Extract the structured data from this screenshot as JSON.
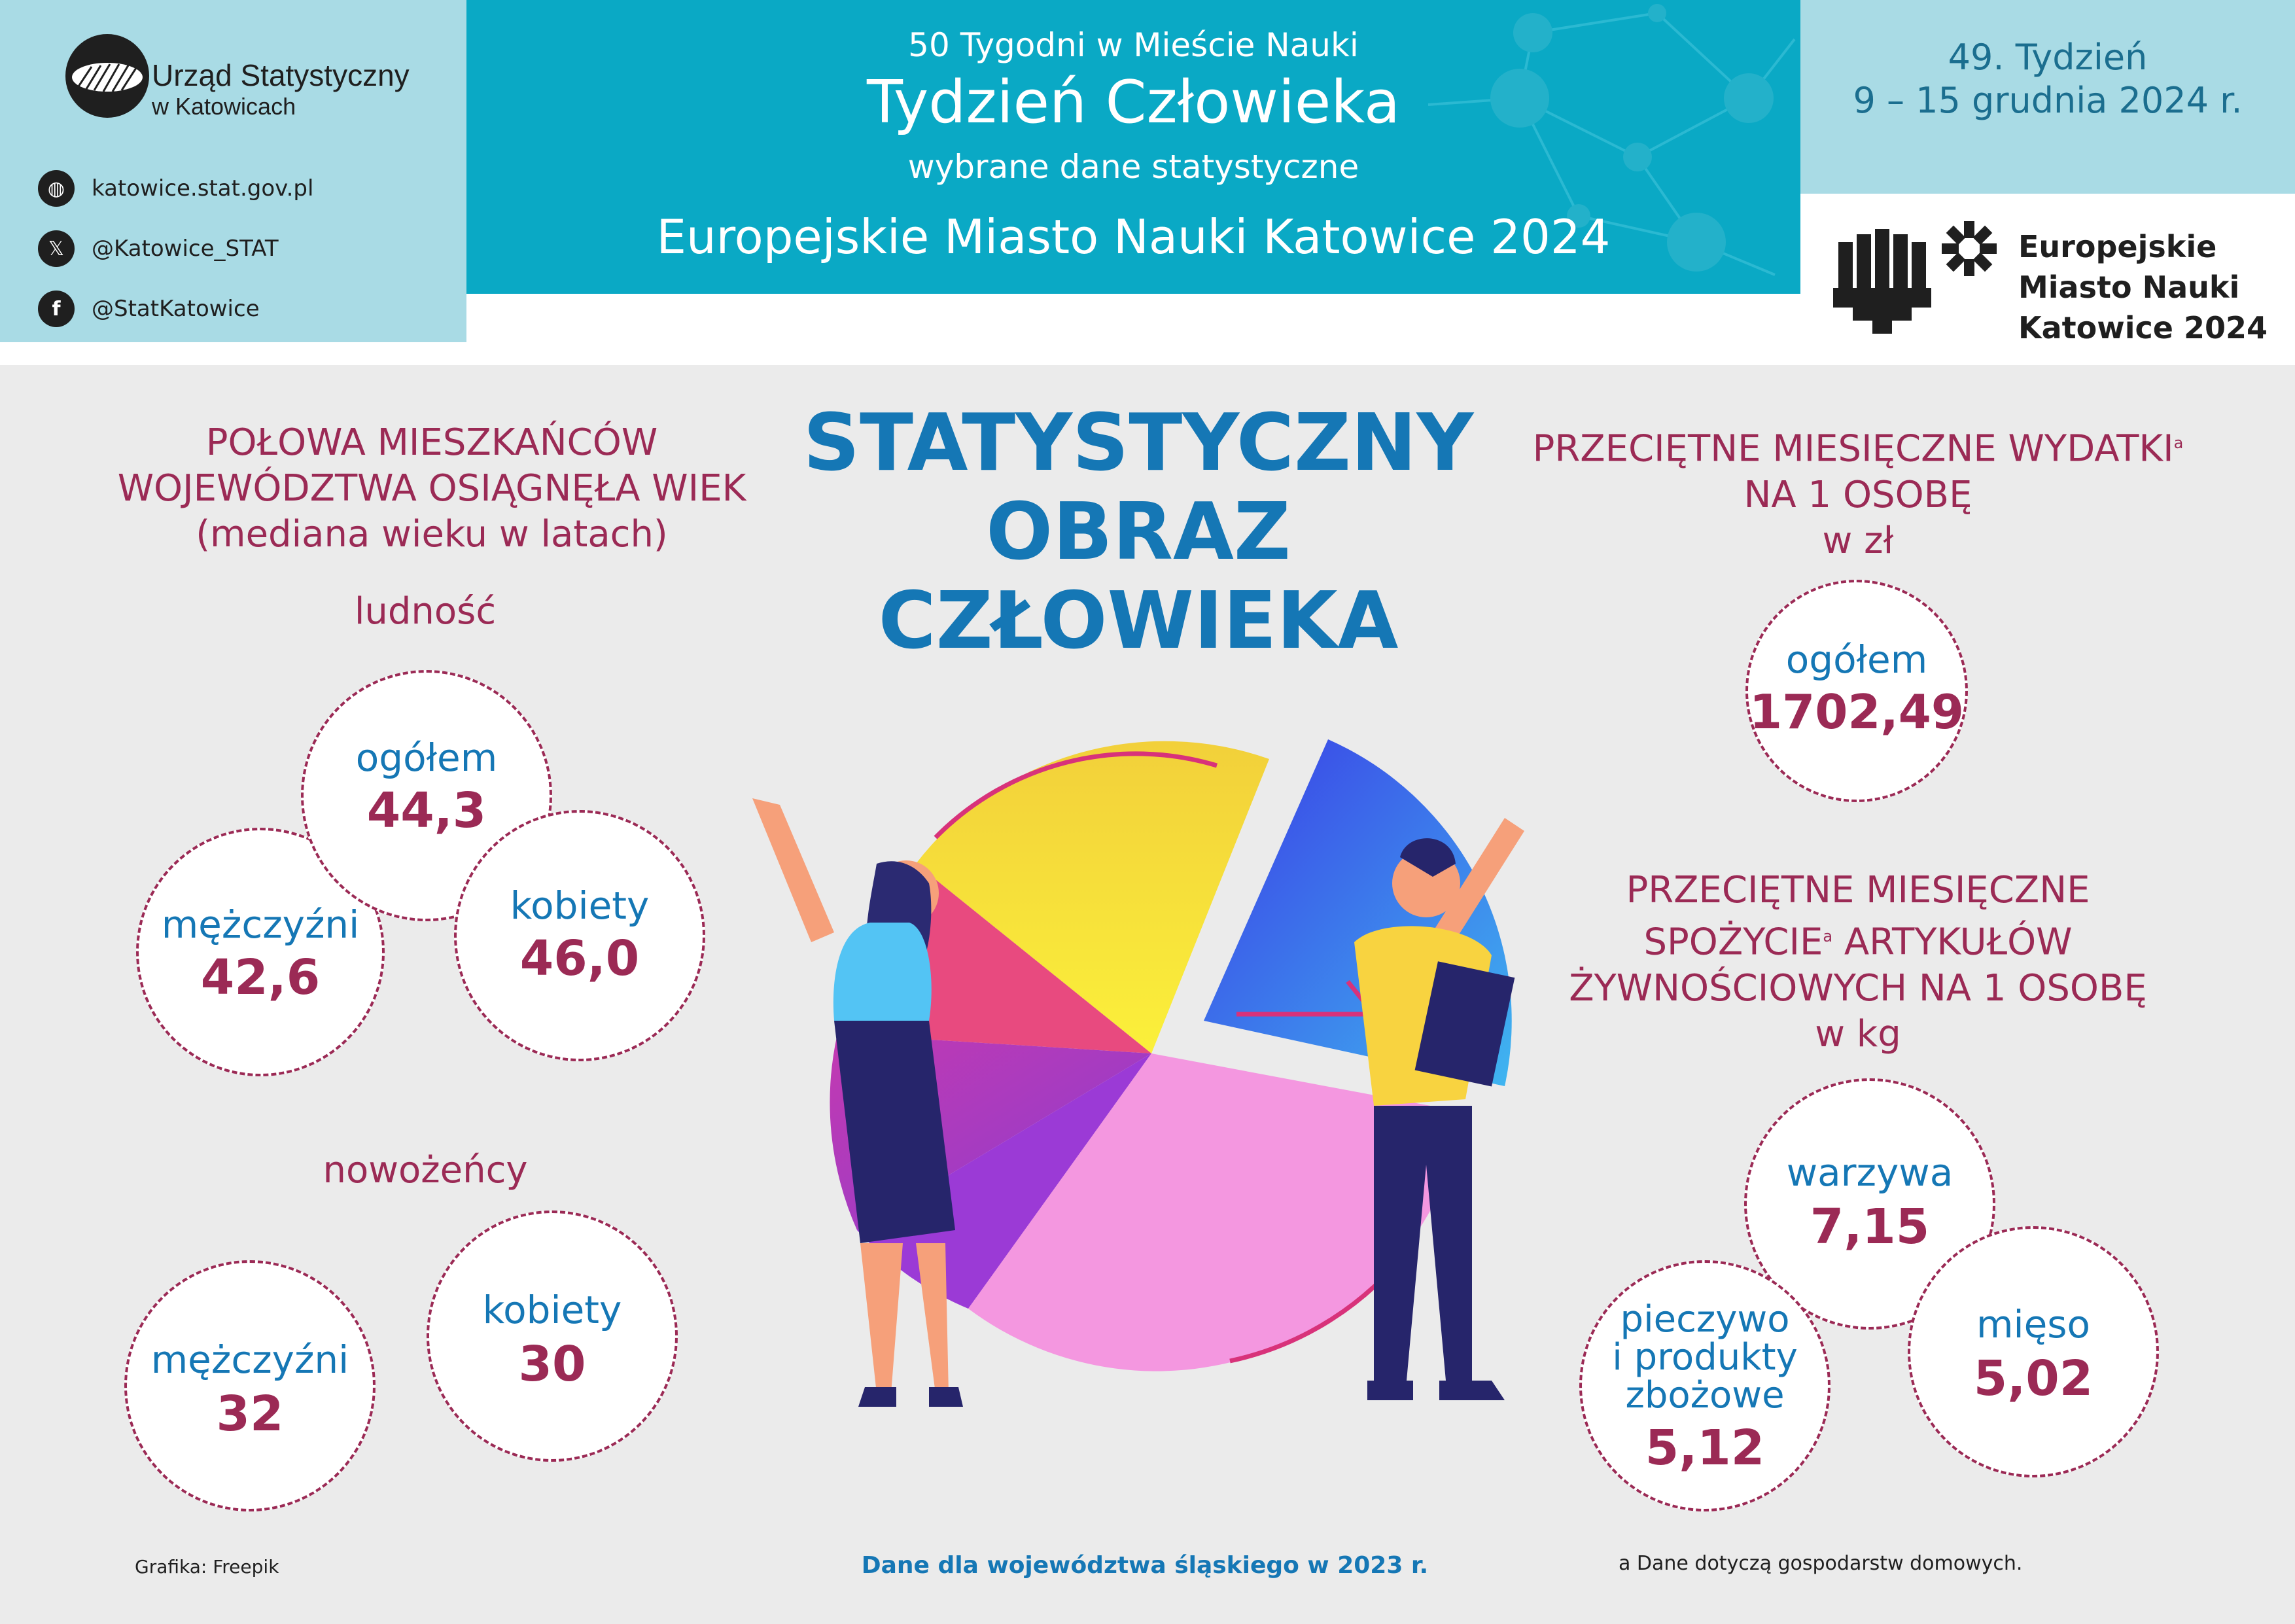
{
  "header": {
    "org_name_line1": "Urząd Statystyczny",
    "org_name_line2": "w Katowicach",
    "social": [
      {
        "icon": "globe-icon",
        "text": "katowice.stat.gov.pl"
      },
      {
        "icon": "x-icon",
        "text": "@Katowice_STAT"
      },
      {
        "icon": "facebook-icon",
        "text": "@StatKatowice"
      }
    ],
    "series": "50 Tygodni w Mieście Nauki",
    "title": "Tydzień Człowieka",
    "subtitle": "wybrane dane statystyczne",
    "event": "Europejskie Miasto Nauki Katowice 2024",
    "week": "49. Tydzień",
    "dates": "9 – 15 grudnia 2024 r.",
    "emn_logo": [
      "Europejskie",
      "Miasto Nauki",
      "Katowice 2024"
    ]
  },
  "main_title": [
    "STATYSTYCZNY",
    "OBRAZ CZŁOWIEKA"
  ],
  "median_age": {
    "heading": [
      "POŁOWA MIESZKAŃCÓW",
      "WOJEWÓDZTWA OSIĄGNĘŁA WIEK",
      "(mediana wieku w latach)"
    ],
    "population": {
      "label": "ludność",
      "total": {
        "label": "ogółem",
        "value": "44,3"
      },
      "men": {
        "label": "mężczyźni",
        "value": "42,6"
      },
      "women": {
        "label": "kobiety",
        "value": "46,0"
      }
    },
    "newlyweds": {
      "label": "nowożeńcy",
      "men": {
        "label": "mężczyźni",
        "value": "32"
      },
      "women": {
        "label": "kobiety",
        "value": "30"
      }
    }
  },
  "expenses": {
    "heading_line1": "PRZECIĘTNE MIESIĘCZNE WYDATKI",
    "heading_sup": "a",
    "heading_line2": "NA 1 OSOBĘ",
    "unit": "w zł",
    "total": {
      "label": "ogółem",
      "value": "1702,49"
    }
  },
  "consumption": {
    "heading_line1": "PRZECIĘTNE MIESIĘCZNE",
    "heading_line2a": "SPOŻYCIE",
    "heading_sup": "a",
    "heading_line2b": " ARTYKUŁÓW",
    "heading_line3": "ŻYWNOŚCIOWYCH NA 1 OSOBĘ",
    "unit": "w kg",
    "vegetables": {
      "label": "warzywa",
      "value": "7,15"
    },
    "bread": {
      "label_lines": [
        "pieczywo",
        "i produkty",
        "zbożowe"
      ],
      "value": "5,12"
    },
    "meat": {
      "label": "mięso",
      "value": "5,02"
    }
  },
  "footer": {
    "credit": "Grafika: Freepik",
    "source": "Dane dla województwa śląskiego w 2023 r.",
    "note": "a Dane dotyczą gospodarstw domowych."
  },
  "colors": {
    "maroon": "#9b2a55",
    "blue": "#1577b5",
    "header_teal": "#0aa9c5",
    "header_light": "#a9dbe5"
  }
}
